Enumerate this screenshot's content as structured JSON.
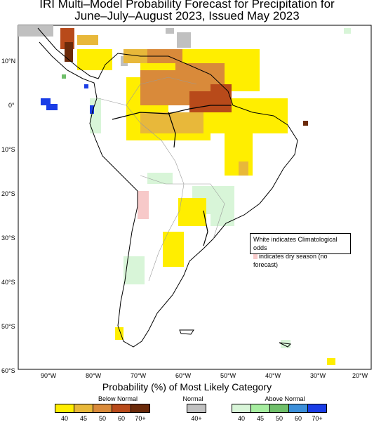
{
  "title": {
    "line1": "IRI Multi–Model Probability Forecast for Precipitation for",
    "line2": "June–July–August 2023, Issued May 2023"
  },
  "axes": {
    "lat_labels": [
      "10°N",
      "0°",
      "10°S",
      "20°S",
      "30°S",
      "40°S",
      "50°S",
      "60°S"
    ],
    "lon_labels": [
      "90°W",
      "80°W",
      "70°W",
      "60°W",
      "50°W",
      "40°W",
      "30°W",
      "20°W"
    ]
  },
  "note": {
    "line1": "White indicates Climatological odds",
    "line2": "indicates dry season (no forecast)"
  },
  "legend": {
    "title": "Probability (%) of Most Likely Category",
    "below": {
      "label": "Below Normal",
      "ticks": [
        "40",
        "45",
        "50",
        "60",
        "70+"
      ],
      "colors": [
        "#ffee00",
        "#e8b83a",
        "#d98a3a",
        "#b84a1a",
        "#6b2a0a"
      ]
    },
    "normal": {
      "label": "Normal",
      "ticks": [
        "40+"
      ],
      "colors": [
        "#c0c0c0"
      ]
    },
    "above": {
      "label": "Above Normal",
      "ticks": [
        "40",
        "45",
        "50",
        "60",
        "70+"
      ],
      "colors": [
        "#d8f5d8",
        "#a6eda0",
        "#6fbf6a",
        "#3c8fd9",
        "#1a3de6"
      ]
    }
  }
}
